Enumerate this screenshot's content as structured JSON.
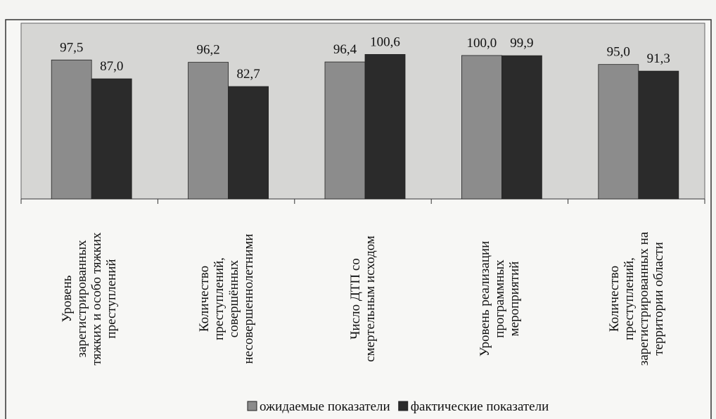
{
  "chart_data": {
    "type": "bar",
    "categories": [
      "Уровень\nзарегистрированных\nтяжких и особо тяжких\nпреступлений",
      "Количество\nпреступлений,\nсовершённых\nнесовершеннолетними",
      "Число ДТП со\nсмертельным исходом",
      "Уровень реализации\nпрограммных\nмероприятий",
      "Количество\nпреступлений,\nзарегистрированных на\nтерритории области"
    ],
    "series": [
      {
        "name": "ожидаемые показатели",
        "color": "#8c8c8c",
        "values": [
          97.5,
          96.2,
          96.4,
          100.0,
          95.0
        ],
        "value_labels": [
          "97,5",
          "96,2",
          "96,4",
          "100,0",
          "95,0"
        ]
      },
      {
        "name": "фактические показатели",
        "color": "#2b2b2b",
        "values": [
          87.0,
          82.7,
          100.6,
          99.9,
          91.3
        ],
        "value_labels": [
          "87,0",
          "82,7",
          "100,6",
          "99,9",
          "91,3"
        ]
      }
    ],
    "ylim": [
      20,
      118
    ]
  }
}
